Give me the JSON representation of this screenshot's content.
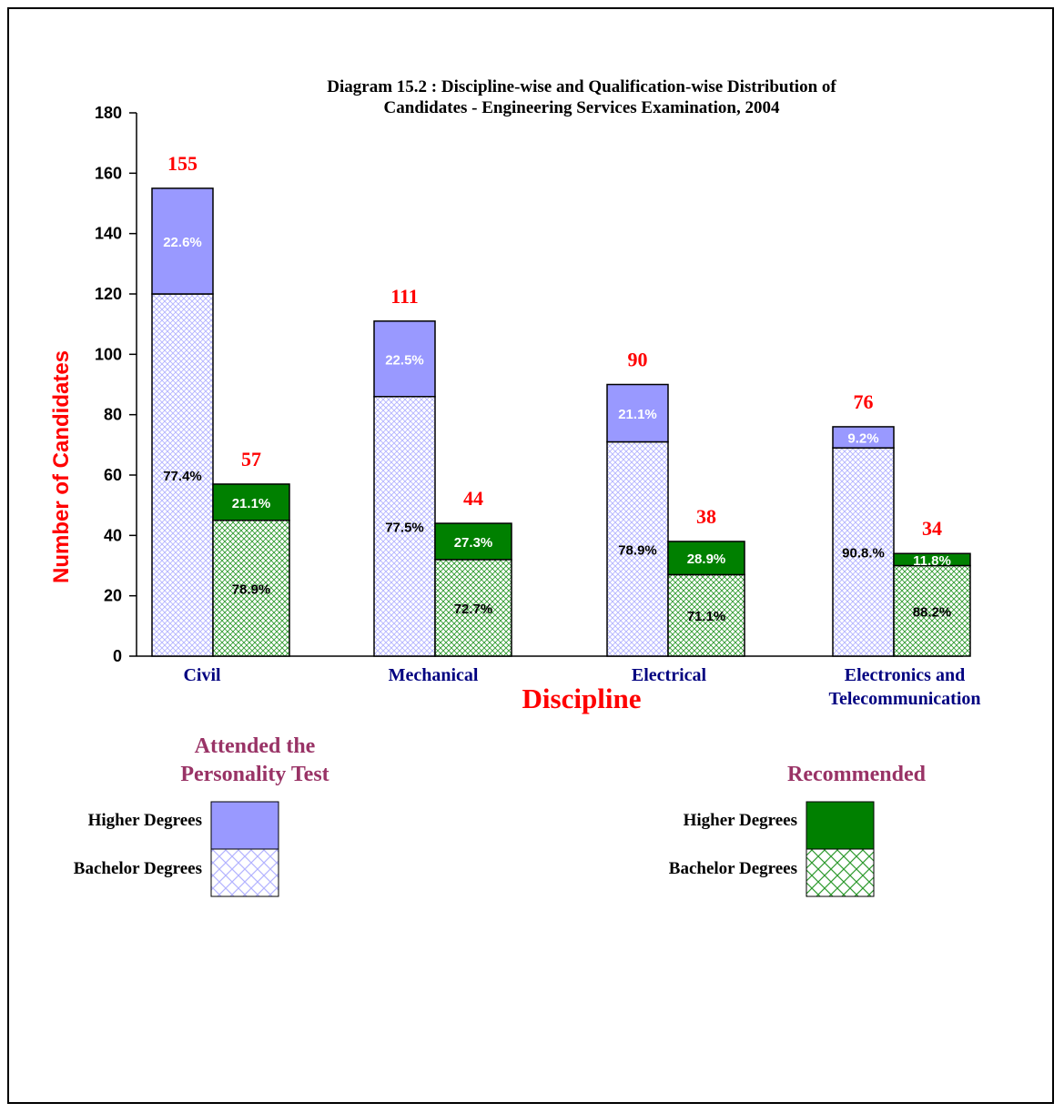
{
  "chart_data": {
    "type": "bar",
    "title": "Diagram 15.2 : Discipline-wise and Qualification-wise Distribution of Candidates - Engineering Services Examination, 2004",
    "title_lines": [
      "Diagram 15.2 : Discipline-wise and Qualification-wise Distribution of",
      "Candidates - Engineering Services Examination, 2004"
    ],
    "xlabel": "Discipline",
    "ylabel": "Number of Candidates",
    "ylim": [
      0,
      180
    ],
    "yticks": [
      "0",
      "20",
      "40",
      "60",
      "80",
      "100",
      "120",
      "140",
      "160",
      "180"
    ],
    "stacked": true,
    "categories": [
      "Civil",
      "Mechanical",
      "Electrical",
      "Electronics and Telecommunication"
    ],
    "category_label_lines": [
      [
        "Civil"
      ],
      [
        "Mechanical"
      ],
      [
        "Electrical"
      ],
      [
        "Electronics and",
        "Telecommunication"
      ]
    ],
    "groups": [
      {
        "name": "Attended the Personality Test",
        "totals": [
          155,
          111,
          90,
          76
        ],
        "total_labels": [
          "155",
          "111",
          "90",
          "76"
        ],
        "series": [
          {
            "name": "Bachelor Degrees",
            "values": [
              120,
              86,
              71,
              69
            ],
            "labels": [
              "77.4%",
              "77.5%",
              "78.9%",
              "90.8.%"
            ]
          },
          {
            "name": "Higher Degrees",
            "values": [
              35,
              25,
              19,
              7
            ],
            "labels": [
              "22.6%",
              "22.5%",
              "21.1%",
              "9.2%"
            ]
          }
        ]
      },
      {
        "name": "Recommended",
        "totals": [
          57,
          44,
          38,
          34
        ],
        "total_labels": [
          "57",
          "44",
          "38",
          "34"
        ],
        "series": [
          {
            "name": "Bachelor Degrees",
            "values": [
              45,
              32,
              27,
              30
            ],
            "labels": [
              "78.9%",
              "72.7%",
              "71.1%",
              "88.2%"
            ]
          },
          {
            "name": "Higher Degrees",
            "values": [
              12,
              12,
              11,
              4
            ],
            "labels": [
              "21.1%",
              "27.3%",
              "28.9%",
              "11.8%"
            ]
          }
        ]
      }
    ],
    "legend": {
      "left": {
        "title_lines": [
          "Attended the",
          "Personality Test"
        ],
        "higher_label": "Higher Degrees",
        "bachelor_label": "Bachelor Degrees"
      },
      "right": {
        "title_lines": [
          "Recommended"
        ],
        "higher_label": "Higher Degrees",
        "bachelor_label": "Bachelor Degrees"
      }
    },
    "colors": {
      "attended_higher": "#9999ff",
      "attended_bachelor": "#ccccff",
      "recommended_higher": "#008000",
      "recommended_bachelor": "#66bb66",
      "total_label": "#ff0000",
      "axis_title": "#ff0000",
      "category_label": "#000080",
      "legend_title": "#993366"
    }
  }
}
